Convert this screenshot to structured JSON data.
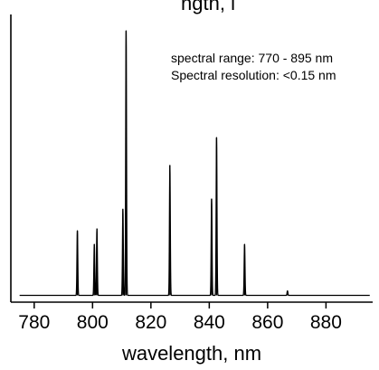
{
  "chart_data": {
    "type": "line",
    "title_fragment": "ngth, i",
    "xlabel": "wavelength, nm",
    "ylabel": "",
    "xlim": [
      772,
      896
    ],
    "ylim": [
      0,
      1
    ],
    "x_ticks": [
      780,
      800,
      820,
      840,
      860,
      880
    ],
    "x_tick_labels": [
      "780",
      "800",
      "820",
      "840",
      "860",
      "880"
    ],
    "annotations": [
      "spectral range: 770 - 895 nm",
      "Spectral resolution: <0.15 nm"
    ],
    "grid": false,
    "legend": "none",
    "line_color": "#000000",
    "baseline": 0.005,
    "series": [
      {
        "peaks": [
          {
            "x": 794.8,
            "y": 0.247
          },
          {
            "x": 800.6,
            "y": 0.196
          },
          {
            "x": 801.5,
            "y": 0.254
          },
          {
            "x": 810.4,
            "y": 0.328
          },
          {
            "x": 811.5,
            "y": 0.996
          },
          {
            "x": 826.5,
            "y": 0.492
          },
          {
            "x": 840.8,
            "y": 0.366
          },
          {
            "x": 842.5,
            "y": 0.596
          },
          {
            "x": 852.1,
            "y": 0.196
          },
          {
            "x": 866.8,
            "y": 0.022
          }
        ]
      }
    ]
  }
}
